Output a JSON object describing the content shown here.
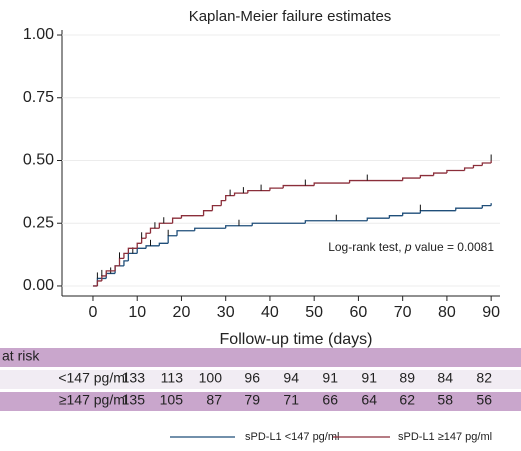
{
  "chart_data": {
    "type": "km-step",
    "title": "Kaplan-Meier failure estimates",
    "xlabel": "Follow-up time (days)",
    "annotation": [
      "Log-rank test, ",
      "p",
      " value = 0.0081"
    ],
    "xlim": [
      -7,
      92
    ],
    "ylim": [
      -0.04,
      1.02
    ],
    "xticks": [
      0,
      10,
      20,
      30,
      40,
      50,
      60,
      70,
      80,
      90
    ],
    "yticks": [
      {
        "value": 0,
        "label": "0.00"
      },
      {
        "value": 0.25,
        "label": "0.25"
      },
      {
        "value": 0.5,
        "label": "0.50"
      },
      {
        "value": 0.75,
        "label": "0.75"
      },
      {
        "value": 1,
        "label": "1.00"
      }
    ],
    "grid": true,
    "series": [
      {
        "name": "sPD-L1 <147 pg/ml",
        "color": "#1f4e79",
        "x": [
          0,
          1,
          3,
          5,
          7,
          8,
          10,
          12,
          15,
          17,
          19,
          23,
          30,
          36,
          48,
          62,
          67,
          70,
          74,
          82,
          88,
          90
        ],
        "values": [
          0,
          0.03,
          0.05,
          0.08,
          0.1,
          0.13,
          0.15,
          0.16,
          0.17,
          0.2,
          0.22,
          0.23,
          0.24,
          0.25,
          0.26,
          0.27,
          0.28,
          0.29,
          0.3,
          0.31,
          0.32,
          0.33
        ],
        "censored": [
          1,
          4,
          9,
          13,
          17,
          33,
          55,
          74
        ]
      },
      {
        "name": "sPD-L1 ≥147 pg/ml",
        "color": "#8b2e3a",
        "x": [
          0,
          1,
          2,
          3,
          5,
          6,
          7,
          8,
          10,
          11,
          12,
          13,
          15,
          18,
          20,
          25,
          27,
          29,
          30,
          32,
          35,
          40,
          43,
          50,
          58,
          70,
          74,
          77,
          80,
          84,
          86,
          88,
          90
        ],
        "values": [
          0,
          0.02,
          0.04,
          0.06,
          0.08,
          0.11,
          0.13,
          0.15,
          0.17,
          0.19,
          0.21,
          0.23,
          0.25,
          0.27,
          0.28,
          0.3,
          0.32,
          0.34,
          0.36,
          0.37,
          0.38,
          0.39,
          0.4,
          0.41,
          0.42,
          0.43,
          0.44,
          0.45,
          0.46,
          0.47,
          0.48,
          0.49,
          0.5
        ],
        "censored": [
          2,
          6,
          11,
          14,
          16,
          31,
          34,
          38,
          48,
          62,
          90
        ]
      }
    ],
    "risk_table": {
      "title": "at risk",
      "rows": [
        {
          "label": "<147 pg/ml",
          "values": [
            133,
            113,
            100,
            96,
            94,
            91,
            91,
            89,
            84,
            82
          ]
        },
        {
          "label": "≥147 pg/ml",
          "values": [
            135,
            105,
            87,
            79,
            71,
            66,
            64,
            62,
            58,
            56
          ]
        }
      ]
    }
  }
}
